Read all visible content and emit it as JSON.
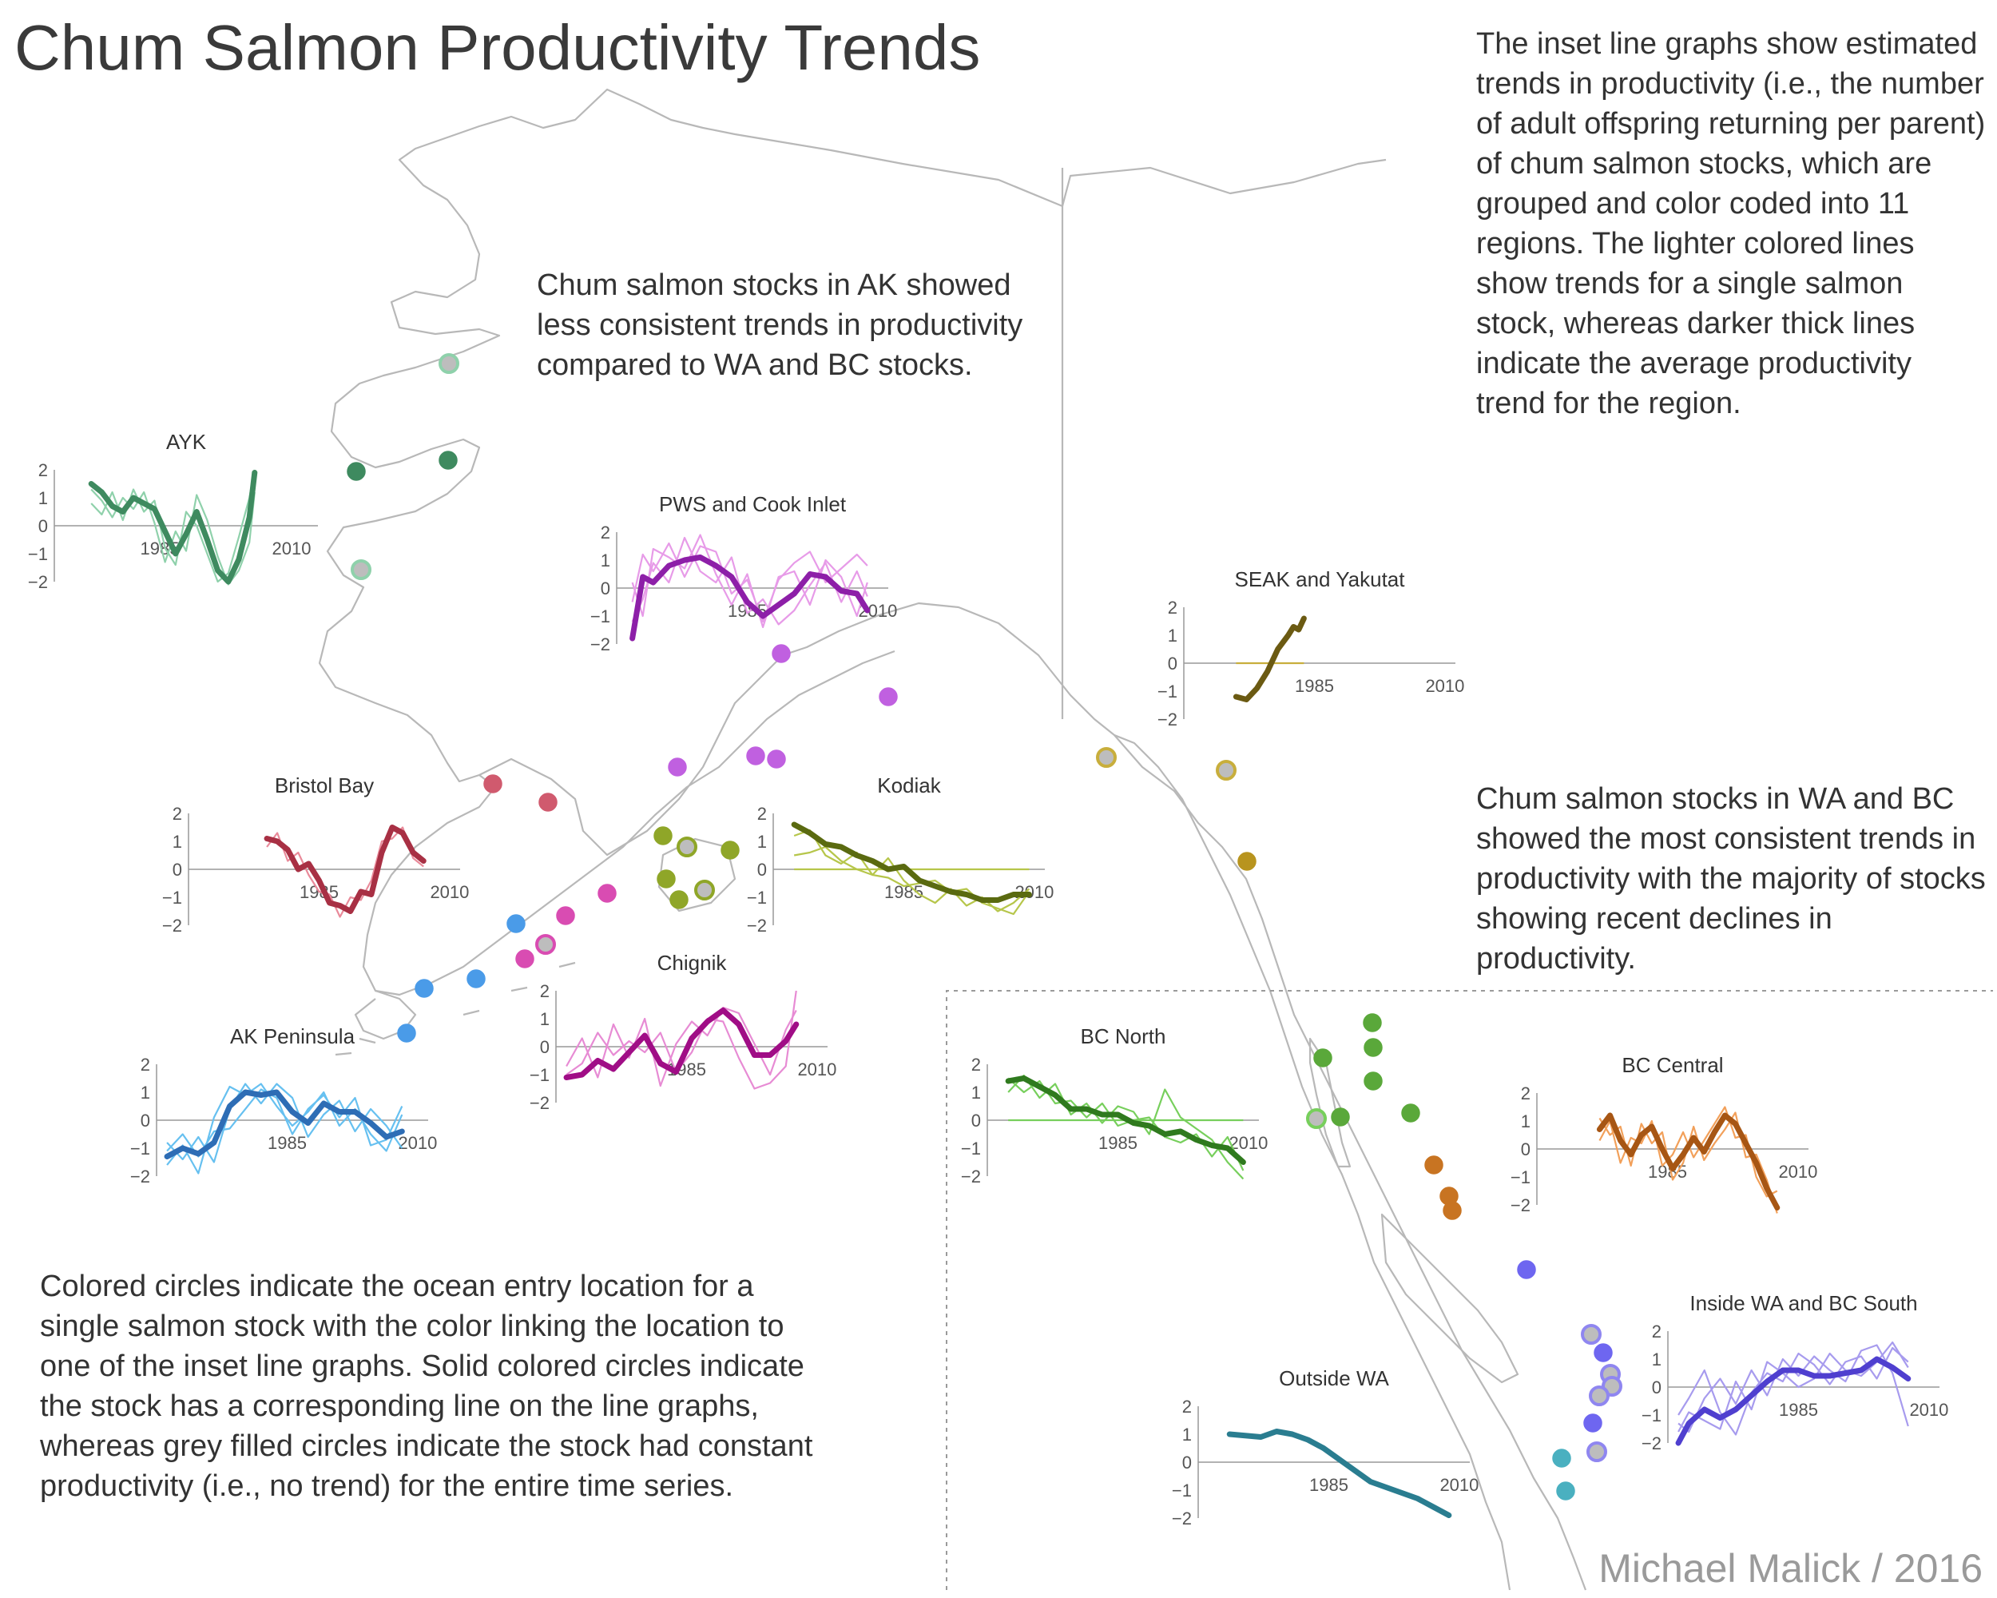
{
  "title": "Chum Salmon Productivity Trends",
  "texts": {
    "top_right": "The inset line graphs show estimated trends in productivity (i.e., the number of adult offspring returning per parent) of chum salmon stocks, which are grouped and color coded into 11 regions. The lighter colored lines show trends for a single salmon stock, whereas darker thick lines indicate the average productivity trend for the region.",
    "ak_note": "Chum salmon stocks in AK showed less consistent trends in productivity compared to WA and BC stocks.",
    "wa_bc_note": "Chum salmon stocks in WA and BC showed the most consistent trends in productivity with the majority of stocks showing recent declines in productivity.",
    "bottom_left": "Colored circles indicate the ocean entry location for a single salmon stock with the color linking the location to one of the inset line graphs. Solid colored circles indicate the stock has a corresponding line on the line graphs, whereas grey filled circles indicate the stock had constant productivity (i.e., no trend) for the entire time series.",
    "credit": "Michael Malick / 2016"
  },
  "chart_data": [
    {
      "type": "line",
      "title": "AYK",
      "color": "#3e8a5f",
      "light": "#8fd1ab",
      "ylim": [
        -2,
        2
      ],
      "yticks": [
        "2",
        "1",
        "0",
        "−1",
        "−2"
      ],
      "xticks": [
        "1985",
        "2010"
      ],
      "xdomain": [
        1965,
        2015
      ],
      "x": [
        1972,
        1974,
        1976,
        1978,
        1980,
        1982,
        1984,
        1986,
        1988,
        1990,
        1992,
        1994,
        1996,
        1998,
        2000,
        2002,
        2003
      ],
      "values": [
        1.5,
        1.2,
        0.7,
        0.5,
        1.0,
        0.8,
        0.6,
        -0.2,
        -1.0,
        -0.3,
        0.5,
        -0.5,
        -1.6,
        -2.0,
        -1.2,
        0.3,
        1.9
      ],
      "stocks": [
        [
          0.8,
          0.4,
          1.2,
          0.2,
          1.3,
          0.5,
          0.9,
          -0.8,
          -1.4,
          0.5,
          0.0,
          -1.0,
          -2.0,
          -1.7,
          -0.4,
          1.0,
          2.0
        ],
        [
          1.3,
          0.9,
          0.3,
          1.0,
          0.6,
          1.2,
          0.1,
          -1.3,
          -0.2,
          -0.9,
          1.1,
          0.2,
          -1.1,
          -2.1,
          -1.6,
          -0.6,
          1.2
        ]
      ]
    },
    {
      "type": "line",
      "title": "PWS and Cook Inlet",
      "color": "#8d1fa8",
      "light": "#e79be8",
      "ylim": [
        -2,
        2
      ],
      "yticks": [
        "2",
        "1",
        "0",
        "−1",
        "−2"
      ],
      "xticks": [
        "1985",
        "2010"
      ],
      "xdomain": [
        1960,
        2012
      ],
      "x": [
        1963,
        1965,
        1967,
        1970,
        1973,
        1976,
        1979,
        1982,
        1985,
        1988,
        1991,
        1994,
        1997,
        2000,
        2003,
        2006,
        2008
      ],
      "values": [
        -1.8,
        0.4,
        0.2,
        0.8,
        1.0,
        1.1,
        0.8,
        0.4,
        -0.5,
        -1.0,
        -0.6,
        -0.2,
        0.5,
        0.4,
        -0.1,
        -0.2,
        -0.8
      ],
      "stocks": [
        [
          -0.5,
          1.2,
          0.6,
          1.6,
          0.4,
          1.5,
          1.3,
          -0.2,
          0.3,
          -1.2,
          0.3,
          0.9,
          1.3,
          0.2,
          0.7,
          1.2,
          0.8
        ],
        [
          -1.2,
          -0.4,
          0.9,
          0.2,
          1.8,
          0.6,
          0.2,
          1.1,
          -0.9,
          -0.4,
          -1.3,
          -0.8,
          0.1,
          0.9,
          -0.5,
          0.6,
          -0.3
        ],
        [
          0.2,
          -1.0,
          1.4,
          1.1,
          0.7,
          1.9,
          0.5,
          -0.6,
          0.5,
          -1.4,
          0.4,
          0.6,
          -0.6,
          1.0,
          0.4,
          -1.0,
          0.2
        ]
      ]
    },
    {
      "type": "line",
      "title": "SEAK and Yakutat",
      "color": "#6b5a12",
      "light": "#c8ae3c",
      "ylim": [
        -2,
        2
      ],
      "yticks": [
        "2",
        "1",
        "0",
        "−1",
        "−2"
      ],
      "xticks": [
        "1985",
        "2010"
      ],
      "xdomain": [
        1960,
        2012
      ],
      "x": [
        1970,
        1972,
        1974,
        1976,
        1978,
        1980,
        1981,
        1982,
        1983
      ],
      "values": [
        -1.2,
        -1.3,
        -0.9,
        -0.3,
        0.5,
        1.0,
        1.3,
        1.2,
        1.6
      ],
      "stocks": [
        [
          0.0,
          0.0,
          0.0,
          0.0,
          0.0,
          0.0,
          0.0,
          0.0,
          0.0
        ]
      ]
    },
    {
      "type": "line",
      "title": "Bristol Bay",
      "color": "#a83044",
      "light": "#e98a9a",
      "ylim": [
        -2,
        2
      ],
      "yticks": [
        "2",
        "1",
        "0",
        "−1",
        "−2"
      ],
      "xticks": [
        "1985",
        "2010"
      ],
      "xdomain": [
        1960,
        2012
      ],
      "x": [
        1975,
        1977,
        1979,
        1981,
        1983,
        1985,
        1987,
        1989,
        1991,
        1993,
        1995,
        1997,
        1999,
        2001,
        2003,
        2005
      ],
      "values": [
        1.1,
        1.0,
        0.7,
        0.0,
        0.2,
        -0.4,
        -1.2,
        -1.3,
        -1.5,
        -0.8,
        -0.9,
        0.6,
        1.5,
        1.3,
        0.6,
        0.3
      ],
      "stocks": [
        [
          0.8,
          1.3,
          0.3,
          0.6,
          -0.2,
          -0.8,
          -0.9,
          -1.7,
          -1.0,
          -1.1,
          -0.4,
          1.0,
          1.1,
          1.5,
          0.4,
          0.1
        ]
      ]
    },
    {
      "type": "line",
      "title": "Kodiak",
      "color": "#5a6a10",
      "light": "#b6c64a",
      "ylim": [
        -2,
        2
      ],
      "yticks": [
        "2",
        "1",
        "0",
        "−1",
        "−2"
      ],
      "xticks": [
        "1985",
        "2010"
      ],
      "xdomain": [
        1960,
        2012
      ],
      "x": [
        1964,
        1967,
        1970,
        1973,
        1976,
        1979,
        1982,
        1985,
        1988,
        1991,
        1994,
        1997,
        2000,
        2003,
        2006,
        2009
      ],
      "values": [
        1.6,
        1.3,
        0.9,
        0.8,
        0.5,
        0.3,
        0.0,
        0.1,
        -0.4,
        -0.6,
        -0.8,
        -0.9,
        -1.1,
        -1.1,
        -0.9,
        -0.9
      ],
      "stocks": [
        [
          1.2,
          1.4,
          0.5,
          0.2,
          0.6,
          -0.2,
          0.4,
          -0.4,
          -0.9,
          -1.2,
          -0.7,
          -1.3,
          -1.0,
          -1.5,
          -1.2,
          -0.7
        ],
        [
          0.5,
          0.6,
          0.8,
          0.3,
          0.0,
          -0.2,
          -0.3,
          -0.6,
          -0.5,
          -0.4,
          -0.8,
          -0.7,
          -1.2,
          -1.4,
          -1.6,
          -0.8
        ],
        [
          0.0,
          0.0,
          0.0,
          0.0,
          0.0,
          0.0,
          0.0,
          0.0,
          0.0,
          0.0,
          0.0,
          0.0,
          0.0,
          0.0,
          0.0,
          0.0
        ]
      ]
    },
    {
      "type": "line",
      "title": "Chignik",
      "color": "#a00d86",
      "light": "#e78bd4",
      "ylim": [
        -2,
        2
      ],
      "yticks": [
        "2",
        "1",
        "0",
        "−1",
        "−2"
      ],
      "xticks": [
        "1985",
        "2010"
      ],
      "xdomain": [
        1960,
        2012
      ],
      "x": [
        1962,
        1965,
        1968,
        1971,
        1974,
        1977,
        1980,
        1983,
        1986,
        1989,
        1992,
        1995,
        1998,
        2001,
        2004,
        2006
      ],
      "values": [
        -1.1,
        -1.0,
        -0.5,
        -0.8,
        -0.2,
        0.4,
        -0.6,
        -0.9,
        0.3,
        0.9,
        1.3,
        0.8,
        -0.3,
        -0.3,
        0.2,
        0.8
      ],
      "stocks": [
        [
          -0.7,
          0.3,
          -1.1,
          0.8,
          -0.4,
          1.0,
          -1.4,
          0.1,
          0.9,
          0.4,
          1.4,
          1.2,
          0.1,
          -1.0,
          0.6,
          1.3
        ],
        [
          -1.0,
          -0.6,
          0.5,
          -0.3,
          0.2,
          -0.2,
          0.5,
          -0.9,
          -0.2,
          1.0,
          0.9,
          -0.4,
          -1.5,
          -1.3,
          -0.7,
          2.0
        ]
      ]
    },
    {
      "type": "line",
      "title": "AK Peninsula",
      "color": "#2e6db5",
      "light": "#66c0f0",
      "ylim": [
        -2,
        2
      ],
      "yticks": [
        "2",
        "1",
        "0",
        "−1",
        "−2"
      ],
      "xticks": [
        "1985",
        "2010"
      ],
      "xdomain": [
        1960,
        2012
      ],
      "x": [
        1962,
        1965,
        1968,
        1971,
        1974,
        1977,
        1980,
        1983,
        1986,
        1989,
        1992,
        1995,
        1998,
        2001,
        2004,
        2007
      ],
      "values": [
        -1.3,
        -1.0,
        -1.2,
        -0.8,
        0.5,
        1.0,
        0.9,
        1.0,
        0.3,
        -0.1,
        0.6,
        0.3,
        0.3,
        -0.1,
        -0.6,
        -0.4
      ],
      "stocks": [
        [
          -1.6,
          -0.9,
          -1.9,
          0.1,
          1.2,
          0.9,
          1.3,
          0.5,
          -0.2,
          0.3,
          1.0,
          -0.2,
          0.4,
          -0.5,
          -1.1,
          0.2
        ],
        [
          -0.8,
          -1.4,
          -0.6,
          -1.5,
          0.4,
          1.3,
          0.6,
          1.3,
          0.8,
          -0.6,
          0.2,
          0.7,
          -0.4,
          0.4,
          -0.2,
          -1.0
        ],
        [
          -1.1,
          -0.5,
          -1.3,
          -0.4,
          -0.3,
          0.4,
          1.1,
          0.8,
          -0.5,
          0.4,
          0.9,
          0.1,
          0.8,
          -0.9,
          -0.7,
          0.5
        ]
      ]
    },
    {
      "type": "line",
      "title": "BC North",
      "color": "#2f7a1e",
      "light": "#77cf5c",
      "ylim": [
        -2,
        2
      ],
      "yticks": [
        "2",
        "1",
        "0",
        "−1",
        "−2"
      ],
      "xticks": [
        "1985",
        "2010"
      ],
      "xdomain": [
        1960,
        2012
      ],
      "x": [
        1964,
        1967,
        1970,
        1973,
        1976,
        1979,
        1982,
        1985,
        1988,
        1991,
        1994,
        1997,
        2000,
        2003,
        2006,
        2009
      ],
      "values": [
        1.4,
        1.5,
        1.2,
        0.9,
        0.4,
        0.4,
        0.2,
        0.2,
        -0.1,
        -0.2,
        -0.5,
        -0.4,
        -0.7,
        -0.9,
        -1.0,
        -1.5
      ],
      "stocks": [
        [
          1.0,
          1.6,
          0.8,
          1.3,
          0.2,
          0.6,
          -0.1,
          0.5,
          0.3,
          -0.5,
          1.1,
          0.1,
          -0.3,
          -0.7,
          -1.5,
          -2.1
        ],
        [
          1.5,
          1.0,
          1.4,
          0.6,
          0.7,
          0.1,
          0.6,
          -0.2,
          0.0,
          0.1,
          -0.6,
          -0.8,
          -0.5,
          -1.3,
          -0.6,
          -1.8
        ],
        [
          0.0,
          0.0,
          0.0,
          0.0,
          0.0,
          0.0,
          0.0,
          0.0,
          0.0,
          0.0,
          0.0,
          0.0,
          0.0,
          0.0,
          0.0,
          0.0
        ]
      ]
    },
    {
      "type": "line",
      "title": "BC Central",
      "color": "#a75614",
      "light": "#f2a05a",
      "ylim": [
        -2,
        2
      ],
      "yticks": [
        "2",
        "1",
        "0",
        "−1",
        "−2"
      ],
      "xticks": [
        "1985",
        "2010"
      ],
      "xdomain": [
        1960,
        2012
      ],
      "x": [
        1972,
        1974,
        1976,
        1978,
        1980,
        1982,
        1984,
        1986,
        1988,
        1990,
        1992,
        1994,
        1996,
        1998,
        2000,
        2002,
        2004,
        2006
      ],
      "values": [
        0.7,
        1.2,
        0.3,
        -0.2,
        0.5,
        0.8,
        0.0,
        -0.7,
        -0.2,
        0.4,
        -0.1,
        0.6,
        1.2,
        0.9,
        0.2,
        -0.5,
        -1.4,
        -2.1
      ],
      "stocks": [
        [
          0.3,
          1.0,
          -0.5,
          0.4,
          0.2,
          1.0,
          -0.6,
          -0.2,
          0.6,
          -0.3,
          0.3,
          0.9,
          1.5,
          0.4,
          0.5,
          -1.0,
          -1.7,
          -1.5
        ],
        [
          1.1,
          0.5,
          0.8,
          -0.6,
          0.9,
          0.2,
          0.6,
          -1.1,
          -0.5,
          0.8,
          -0.4,
          0.2,
          0.7,
          1.3,
          -0.3,
          -0.2,
          -1.1,
          -2.3
        ]
      ]
    },
    {
      "type": "line",
      "title": "Inside WA and BC South",
      "color": "#4f3fcf",
      "light": "#a79bee",
      "ylim": [
        -2,
        2
      ],
      "yticks": [
        "2",
        "1",
        "0",
        "−1",
        "−2"
      ],
      "xticks": [
        "1985",
        "2010"
      ],
      "xdomain": [
        1960,
        2012
      ],
      "x": [
        1962,
        1964,
        1967,
        1970,
        1973,
        1976,
        1979,
        1982,
        1985,
        1988,
        1991,
        1994,
        1997,
        2000,
        2003,
        2006
      ],
      "values": [
        -2.0,
        -1.3,
        -0.8,
        -1.1,
        -0.8,
        -0.3,
        0.2,
        0.6,
        0.6,
        0.4,
        0.4,
        0.5,
        0.6,
        1.0,
        0.7,
        0.3
      ],
      "stocks": [
        [
          -1.0,
          -0.4,
          0.6,
          -0.9,
          -1.7,
          -0.2,
          0.5,
          0.2,
          1.2,
          0.8,
          0.1,
          0.9,
          1.1,
          0.3,
          1.4,
          0.9
        ],
        [
          -1.3,
          -1.6,
          -0.4,
          0.3,
          -0.6,
          0.6,
          -0.3,
          1.0,
          0.4,
          1.1,
          0.6,
          0.2,
          1.3,
          1.5,
          0.5,
          -1.4
        ],
        [
          -1.6,
          -0.9,
          -1.2,
          -1.5,
          0.2,
          -0.8,
          0.9,
          0.5,
          0.0,
          0.3,
          1.2,
          0.6,
          0.4,
          0.9,
          1.6,
          0.7
        ]
      ]
    },
    {
      "type": "line",
      "title": "Outside WA",
      "color": "#2a7d90",
      "light": "#7cc3d2",
      "ylim": [
        -2,
        2
      ],
      "yticks": [
        "2",
        "1",
        "0",
        "−1",
        "−2"
      ],
      "xticks": [
        "1985",
        "2010"
      ],
      "xdomain": [
        1960,
        2012
      ],
      "x": [
        1966,
        1969,
        1972,
        1975,
        1978,
        1981,
        1984,
        1987,
        1990,
        1993,
        1996,
        1999,
        2002,
        2005,
        2008
      ],
      "values": [
        1.0,
        0.95,
        0.9,
        1.1,
        1.0,
        0.8,
        0.5,
        0.1,
        -0.3,
        -0.7,
        -0.9,
        -1.1,
        -1.3,
        -1.6,
        -1.9
      ],
      "stocks": []
    }
  ]
}
